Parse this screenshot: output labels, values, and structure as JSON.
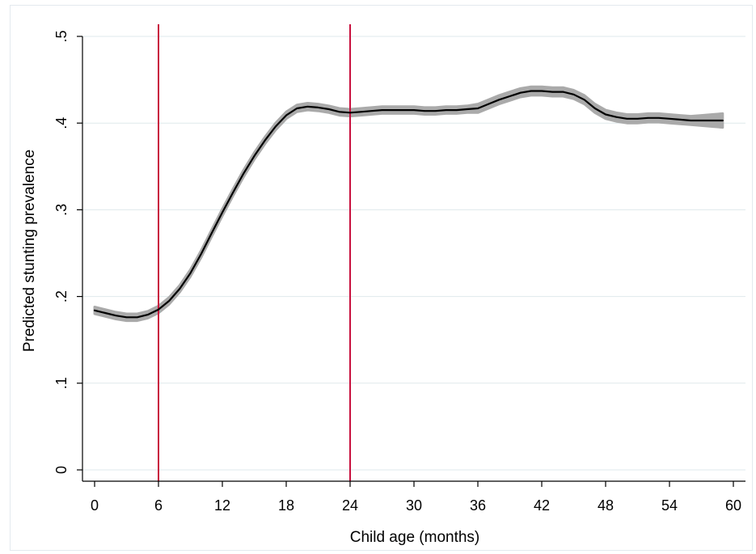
{
  "chart_data": {
    "type": "line",
    "xlabel": "Child age (months)",
    "ylabel": "Predicted stunting prevalence",
    "xlim": [
      0,
      60
    ],
    "ylim": [
      0,
      0.5
    ],
    "x_ticks": [
      0,
      6,
      12,
      18,
      24,
      30,
      36,
      42,
      48,
      54,
      60
    ],
    "x_tick_labels": [
      "0",
      "6",
      "12",
      "18",
      "24",
      "30",
      "36",
      "42",
      "48",
      "54",
      "60"
    ],
    "y_ticks": [
      0,
      0.1,
      0.2,
      0.3,
      0.4,
      0.5
    ],
    "y_tick_labels": [
      "0",
      ".1",
      ".2",
      ".3",
      ".4",
      ".5"
    ],
    "grid": true,
    "reference_lines_x": [
      6,
      24
    ],
    "colors": {
      "line": "#000000",
      "ci_band": "#aaaaaa",
      "reference_line": "#c8103e",
      "grid": "#dfe9ec",
      "axis": "#000000"
    },
    "series": [
      {
        "x": [
          0,
          1,
          2,
          3,
          4,
          5,
          6,
          7,
          8,
          9,
          10,
          11,
          12,
          13,
          14,
          15,
          16,
          17,
          18,
          19,
          20,
          21,
          22,
          23,
          24,
          25,
          26,
          27,
          28,
          29,
          30,
          31,
          32,
          33,
          34,
          35,
          36,
          37,
          38,
          39,
          40,
          41,
          42,
          43,
          44,
          45,
          46,
          47,
          48,
          49,
          50,
          51,
          52,
          53,
          54,
          55,
          56,
          57,
          58,
          59
        ],
        "y": [
          0.184,
          0.181,
          0.178,
          0.176,
          0.176,
          0.179,
          0.185,
          0.195,
          0.209,
          0.227,
          0.249,
          0.273,
          0.297,
          0.32,
          0.342,
          0.362,
          0.38,
          0.396,
          0.409,
          0.417,
          0.419,
          0.418,
          0.416,
          0.413,
          0.412,
          0.413,
          0.414,
          0.415,
          0.415,
          0.415,
          0.415,
          0.414,
          0.414,
          0.415,
          0.415,
          0.416,
          0.417,
          0.422,
          0.427,
          0.431,
          0.435,
          0.437,
          0.437,
          0.436,
          0.436,
          0.433,
          0.427,
          0.417,
          0.41,
          0.407,
          0.405,
          0.405,
          0.406,
          0.406,
          0.405,
          0.404,
          0.403,
          0.403,
          0.403,
          0.403
        ],
        "ci_halfwidth": [
          0.004,
          0.004,
          0.004,
          0.004,
          0.004,
          0.004,
          0.004,
          0.004,
          0.004,
          0.004,
          0.004,
          0.004,
          0.004,
          0.004,
          0.004,
          0.004,
          0.004,
          0.004,
          0.004,
          0.004,
          0.004,
          0.004,
          0.004,
          0.004,
          0.004,
          0.004,
          0.004,
          0.004,
          0.004,
          0.004,
          0.004,
          0.004,
          0.004,
          0.004,
          0.004,
          0.004,
          0.005,
          0.005,
          0.005,
          0.005,
          0.005,
          0.005,
          0.005,
          0.005,
          0.005,
          0.005,
          0.005,
          0.005,
          0.005,
          0.005,
          0.005,
          0.005,
          0.005,
          0.005,
          0.005,
          0.005,
          0.005,
          0.006,
          0.007,
          0.008
        ]
      }
    ]
  }
}
